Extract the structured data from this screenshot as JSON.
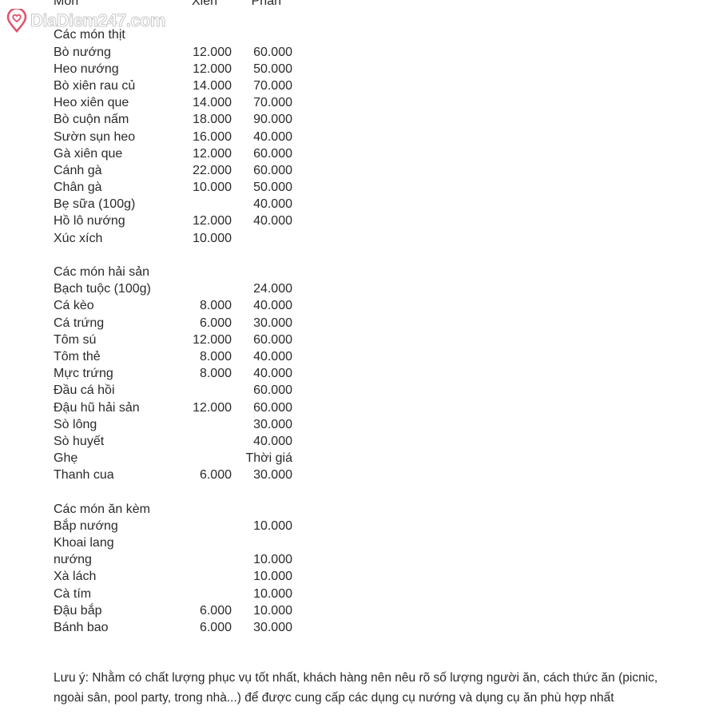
{
  "watermark": {
    "text": "DiaDiem247.com",
    "icon": "location-pin-heart-icon",
    "color": "#e0566e"
  },
  "header": {
    "name": "Món",
    "xien": "Xiên",
    "phan": "Phần"
  },
  "sections": [
    {
      "title": "Các món thịt",
      "items": [
        {
          "name": "Bò nướng",
          "xien": "12.000",
          "phan": "60.000"
        },
        {
          "name": "Heo nướng",
          "xien": "12.000",
          "phan": "50.000"
        },
        {
          "name": "Bò xiên rau củ",
          "xien": "14.000",
          "phan": "70.000"
        },
        {
          "name": "Heo xiên que",
          "xien": "14.000",
          "phan": "70.000"
        },
        {
          "name": "Bò cuộn nấm",
          "xien": "18.000",
          "phan": "90.000"
        },
        {
          "name": "Sườn sụn heo",
          "xien": "16.000",
          "phan": "40.000"
        },
        {
          "name": "Gà xiên que",
          "xien": "12.000",
          "phan": "60.000"
        },
        {
          "name": "Cánh gà",
          "xien": "22.000",
          "phan": "60.000"
        },
        {
          "name": "Chân gà",
          "xien": "10.000",
          "phan": "50.000"
        },
        {
          "name": "Bẹ sữa (100g)",
          "xien": "",
          "phan": "40.000"
        },
        {
          "name": "Hồ lô nướng",
          "xien": "12.000",
          "phan": "40.000"
        },
        {
          "name": "Xúc xích",
          "xien": "10.000",
          "phan": ""
        }
      ]
    },
    {
      "title": "Các món hải sản",
      "items": [
        {
          "name": "Bạch tuộc (100g)",
          "xien": "",
          "phan": "24.000"
        },
        {
          "name": "Cá kèo",
          "xien": "8.000",
          "phan": "40.000"
        },
        {
          "name": "Cá trứng",
          "xien": "6.000",
          "phan": "30.000"
        },
        {
          "name": "Tôm sú",
          "xien": "12.000",
          "phan": "60.000"
        },
        {
          "name": "Tôm thẻ",
          "xien": "8.000",
          "phan": "40.000"
        },
        {
          "name": "Mực trứng",
          "xien": "8.000",
          "phan": "40.000"
        },
        {
          "name": "Đầu cá hồi",
          "xien": "",
          "phan": "60.000"
        },
        {
          "name": "Đậu hũ hải sản",
          "xien": "12.000",
          "phan": "60.000"
        },
        {
          "name": "Sò lông",
          "xien": "",
          "phan": "30.000"
        },
        {
          "name": "Sò huyết",
          "xien": "",
          "phan": "40.000"
        },
        {
          "name": "Ghẹ",
          "xien": "",
          "phan": "Thời giá"
        },
        {
          "name": "Thanh cua",
          "xien": "6.000",
          "phan": "30.000"
        }
      ]
    },
    {
      "title": "Các món ăn kèm",
      "items": [
        {
          "name": "Bắp nướng",
          "xien": "",
          "phan": "10.000"
        },
        {
          "name": "Khoai lang",
          "xien": "",
          "phan": ""
        },
        {
          "name": "nướng",
          "xien": "",
          "phan": "10.000"
        },
        {
          "name": "Xà lách",
          "xien": "",
          "phan": "10.000"
        },
        {
          "name": "Cà tím",
          "xien": "",
          "phan": "10.000"
        },
        {
          "name": "Đậu bắp",
          "xien": "6.000",
          "phan": "10.000"
        },
        {
          "name": "Bánh bao",
          "xien": "6.000",
          "phan": "30.000"
        }
      ]
    }
  ],
  "note": "Lưu ý: Nhằm có chất lượng phục vụ tốt nhất, khách hàng nên nêu rõ số lượng người ăn, cách thức ăn (picnic, ngoài sân, pool party, trong nhà...) để được cung cấp các dụng cụ nướng và dụng cụ ăn phù hợp nhất"
}
